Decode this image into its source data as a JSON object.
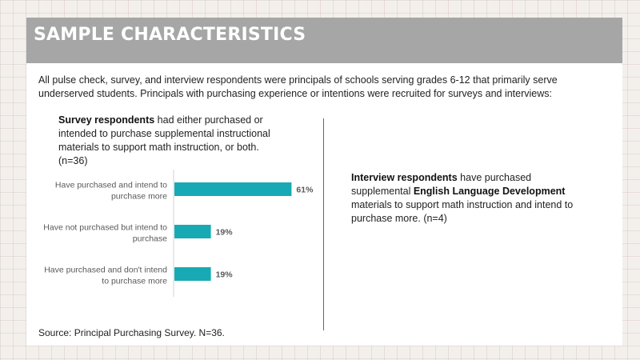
{
  "header": {
    "title": "SAMPLE CHARACTERISTICS"
  },
  "intro": "All pulse check, survey, and interview respondents were principals of schools serving grades 6-12 that primarily serve underserved students. Principals with purchasing experience or intentions were recruited for surveys and interviews:",
  "survey": {
    "bold": "Survey respondents",
    "rest": " had either purchased or intended to purchase supplemental instructional materials to support math instruction, or both. (n=36)"
  },
  "interview": {
    "bold1": "Interview respondents",
    "text1": " have purchased supplemental ",
    "bold2": "English Language Development",
    "text2": " materials to support math instruction and intend to purchase more. (n=4)"
  },
  "source": "Source: Principal Purchasing Survey. N=36.",
  "colors": {
    "bar": "#17aab4",
    "title_bar": "#a6a6a6"
  },
  "chart_data": {
    "type": "bar",
    "orientation": "horizontal",
    "categories": [
      [
        "Have purchased and intend to",
        "purchase more"
      ],
      [
        "Have not purchased but intend to",
        "purchase"
      ],
      [
        "Have purchased and don't intend",
        "to purchase more"
      ]
    ],
    "values": [
      61,
      19,
      19
    ],
    "value_labels": [
      "61%",
      "19%",
      "19%"
    ],
    "xlim": [
      0,
      100
    ],
    "grid": false,
    "legend": false
  }
}
